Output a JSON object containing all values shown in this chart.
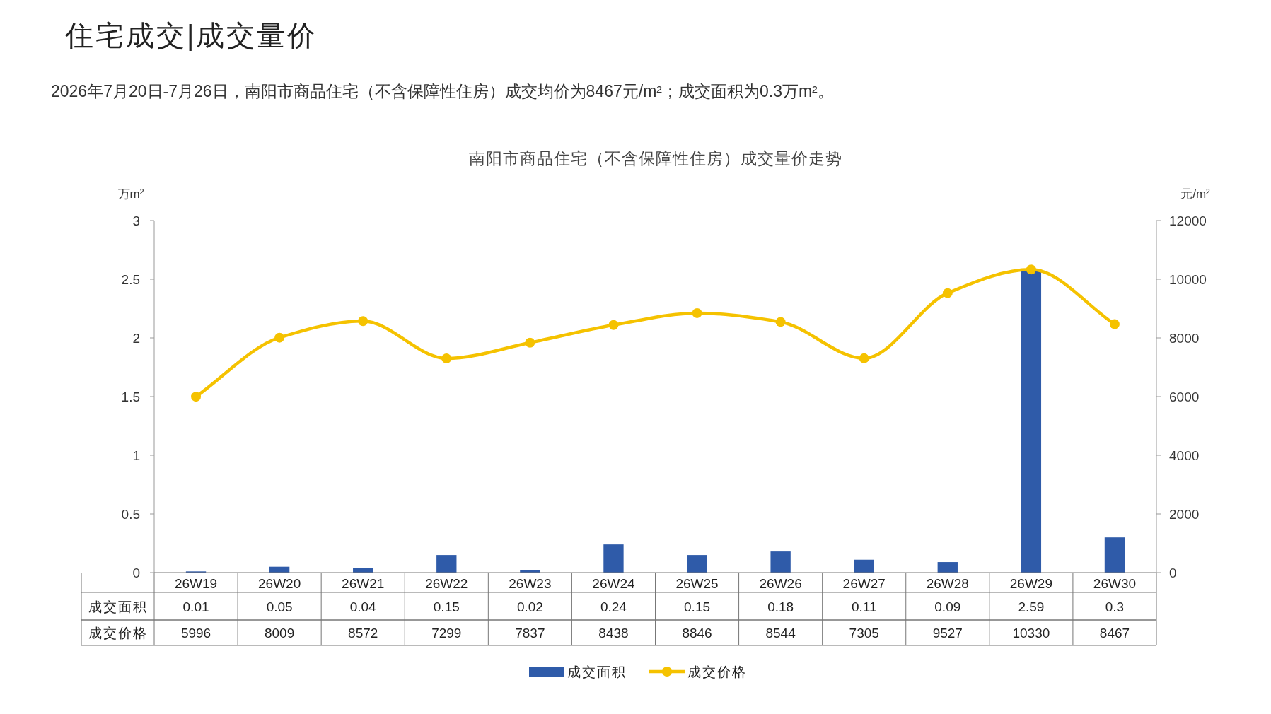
{
  "chart_data": {
    "type": "bar",
    "title": "南阳市商品住宅（不含保障性住房）成交量价走势",
    "annotations": [
      "住宅成交|成交量价",
      "2026年7月20日-7月26日，南阳市商品住宅（不含保障性住房）成交均价为8467元/m²；成交面积为0.3万m²。"
    ],
    "ylabel": "万m²",
    "y2label": "元/m²",
    "categories": [
      "26W19",
      "26W20",
      "26W21",
      "26W22",
      "26W23",
      "26W24",
      "26W25",
      "26W26",
      "26W27",
      "26W28",
      "26W29",
      "26W30"
    ],
    "series": [
      {
        "name": "成交面积",
        "color": "#2f5ba9",
        "values": [
          0.01,
          0.05,
          0.04,
          0.15,
          0.02,
          0.24,
          0.15,
          0.18,
          0.11,
          0.09,
          2.59,
          0.3
        ]
      },
      {
        "name": "成交价格",
        "type": "line",
        "axis": "y2",
        "color": "#f5c200",
        "marker": "circle",
        "values": [
          5996,
          8009,
          8572,
          7299,
          7837,
          8438,
          8846,
          8544,
          7305,
          9527,
          10330,
          8467
        ]
      }
    ],
    "ylim": [
      0,
      3
    ],
    "yticks": [
      0,
      0.5,
      1,
      1.5,
      2,
      2.5,
      3
    ],
    "y2lim": [
      0,
      12000
    ],
    "y2ticks": [
      0,
      2000,
      4000,
      6000,
      8000,
      10000,
      12000
    ],
    "data_labels": true,
    "legend": "bottom",
    "grid": false
  }
}
